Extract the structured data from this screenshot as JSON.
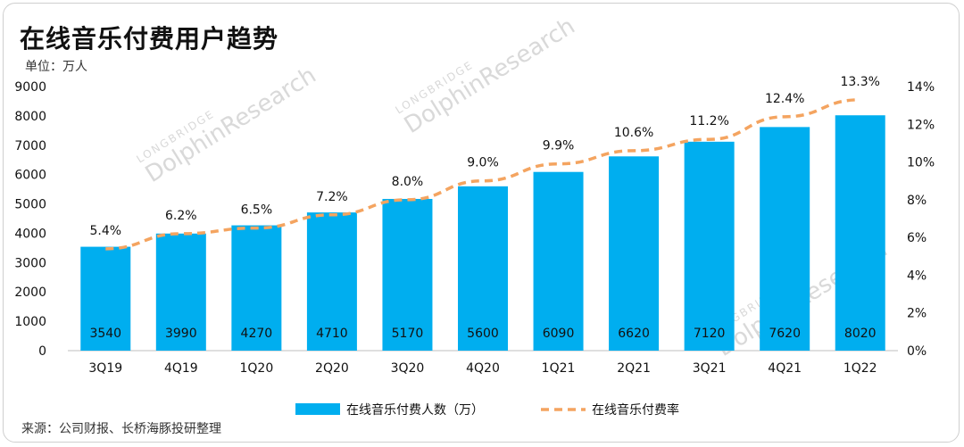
{
  "title": "在线音乐付费用户趋势",
  "unit_label": "单位：万人",
  "source": "来源：公司财报、长桥海豚投研整理",
  "watermark": {
    "top": "LONGBRIDGE",
    "main": "DolphinResearch"
  },
  "colors": {
    "bar": "#00AEEF",
    "line": "#F4A460",
    "text": "#111111"
  },
  "chart_data": {
    "type": "bar",
    "categories": [
      "3Q19",
      "4Q19",
      "1Q20",
      "2Q20",
      "3Q20",
      "4Q20",
      "1Q21",
      "2Q21",
      "3Q21",
      "4Q21",
      "1Q22"
    ],
    "series": [
      {
        "name": "在线音乐付费人数（万）",
        "kind": "bar",
        "axis": "left",
        "values": [
          3540,
          3990,
          4270,
          4710,
          5170,
          5600,
          6090,
          6620,
          7120,
          7620,
          8020
        ],
        "labels": [
          "3540",
          "3990",
          "4270",
          "4710",
          "5170",
          "5600",
          "6090",
          "6620",
          "7120",
          "7620",
          "8020"
        ]
      },
      {
        "name": "在线音乐付费率",
        "kind": "line",
        "style": "dashed",
        "axis": "right",
        "values": [
          5.4,
          6.2,
          6.5,
          7.2,
          8.0,
          9.0,
          9.9,
          10.6,
          11.2,
          12.4,
          13.3
        ],
        "labels": [
          "5.4%",
          "6.2%",
          "6.5%",
          "7.2%",
          "8.0%",
          "9.0%",
          "9.9%",
          "10.6%",
          "11.2%",
          "12.4%",
          "13.3%"
        ]
      }
    ],
    "y_left": {
      "min": 0,
      "max": 9000,
      "ticks": [
        "0",
        "1000",
        "2000",
        "3000",
        "4000",
        "5000",
        "6000",
        "7000",
        "8000",
        "9000"
      ]
    },
    "y_right": {
      "min": 0,
      "max": 14,
      "ticks": [
        "0%",
        "2%",
        "4%",
        "6%",
        "8%",
        "10%",
        "12%",
        "14%"
      ]
    },
    "legend_position": "bottom",
    "grid": false
  }
}
